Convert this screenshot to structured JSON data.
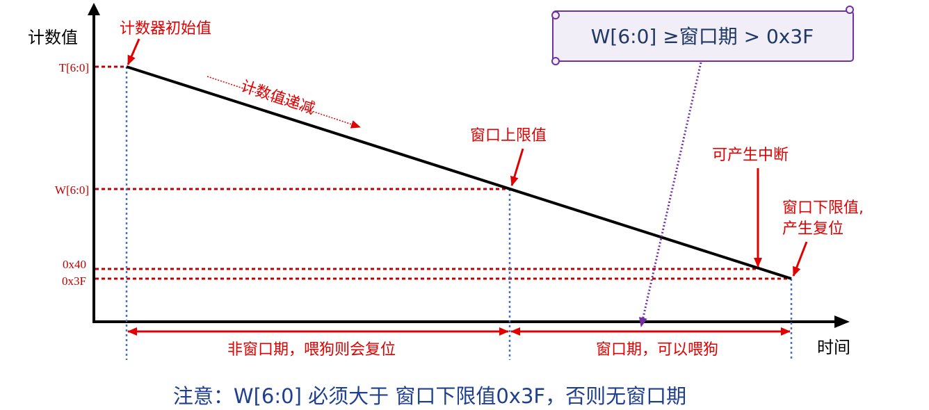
{
  "axes": {
    "y_label": "计数值",
    "x_label": "时间"
  },
  "levels": [
    "T[6:0]",
    "W[6:0]",
    "0x40",
    "0x3F"
  ],
  "annotations": {
    "initial": "计数器初始值",
    "decrement": "计数值递减",
    "upper": "窗口上限值",
    "interrupt": "可产生中断",
    "lower_line1": "窗口下限值,",
    "lower_line2": "产生复位"
  },
  "window_box": "W[6:0] ≥窗口期 > 0x3F",
  "periods": [
    "非窗口期，喂狗则会复位",
    "窗口期，可以喂狗"
  ],
  "note": "注意：W[6:0] 必须大于 窗口下限值0x3F，否则无窗口期"
}
